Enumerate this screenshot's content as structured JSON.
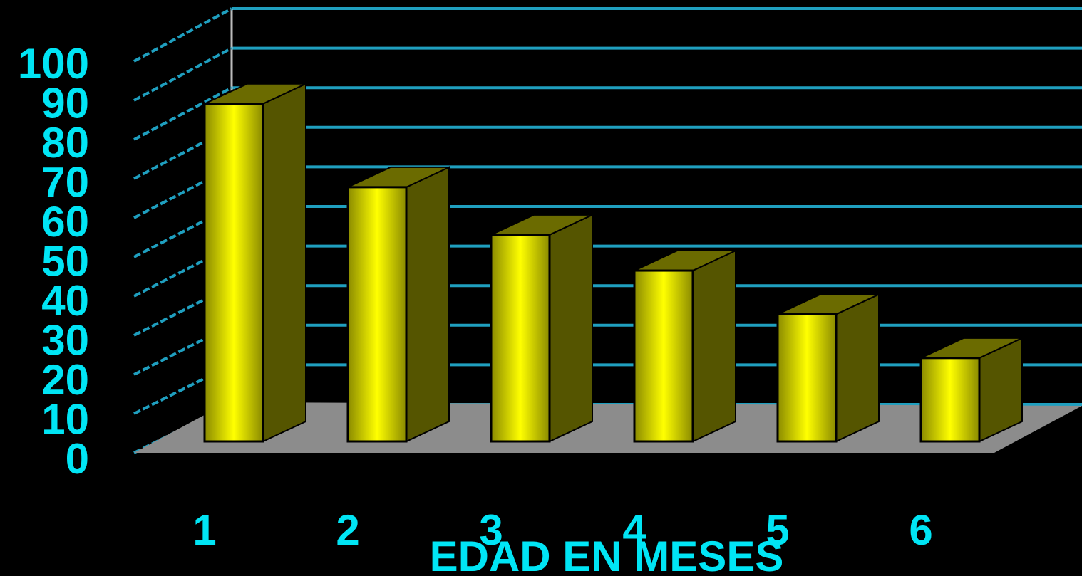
{
  "chart_data": {
    "type": "bar",
    "categories": [
      "1",
      "2",
      "3",
      "4",
      "5",
      "6"
    ],
    "values": [
      85,
      64,
      52,
      43,
      32,
      21
    ],
    "yticks": [
      "0",
      "10",
      "20",
      "30",
      "40",
      "50",
      "60",
      "70",
      "80",
      "90",
      "100"
    ],
    "xlabel": "EDAD EN MESES",
    "ylim": [
      0,
      100
    ],
    "grid": true,
    "colors": {
      "background": "#000000",
      "axis_text": "#00e5f5",
      "gridline": "#1f9fbf",
      "floor": "#8c8c8c",
      "bar_center": "#ffff00",
      "bar_edge": "#8a8a00",
      "bar_side": "#555500",
      "bar_top": "#6b6b00"
    }
  }
}
